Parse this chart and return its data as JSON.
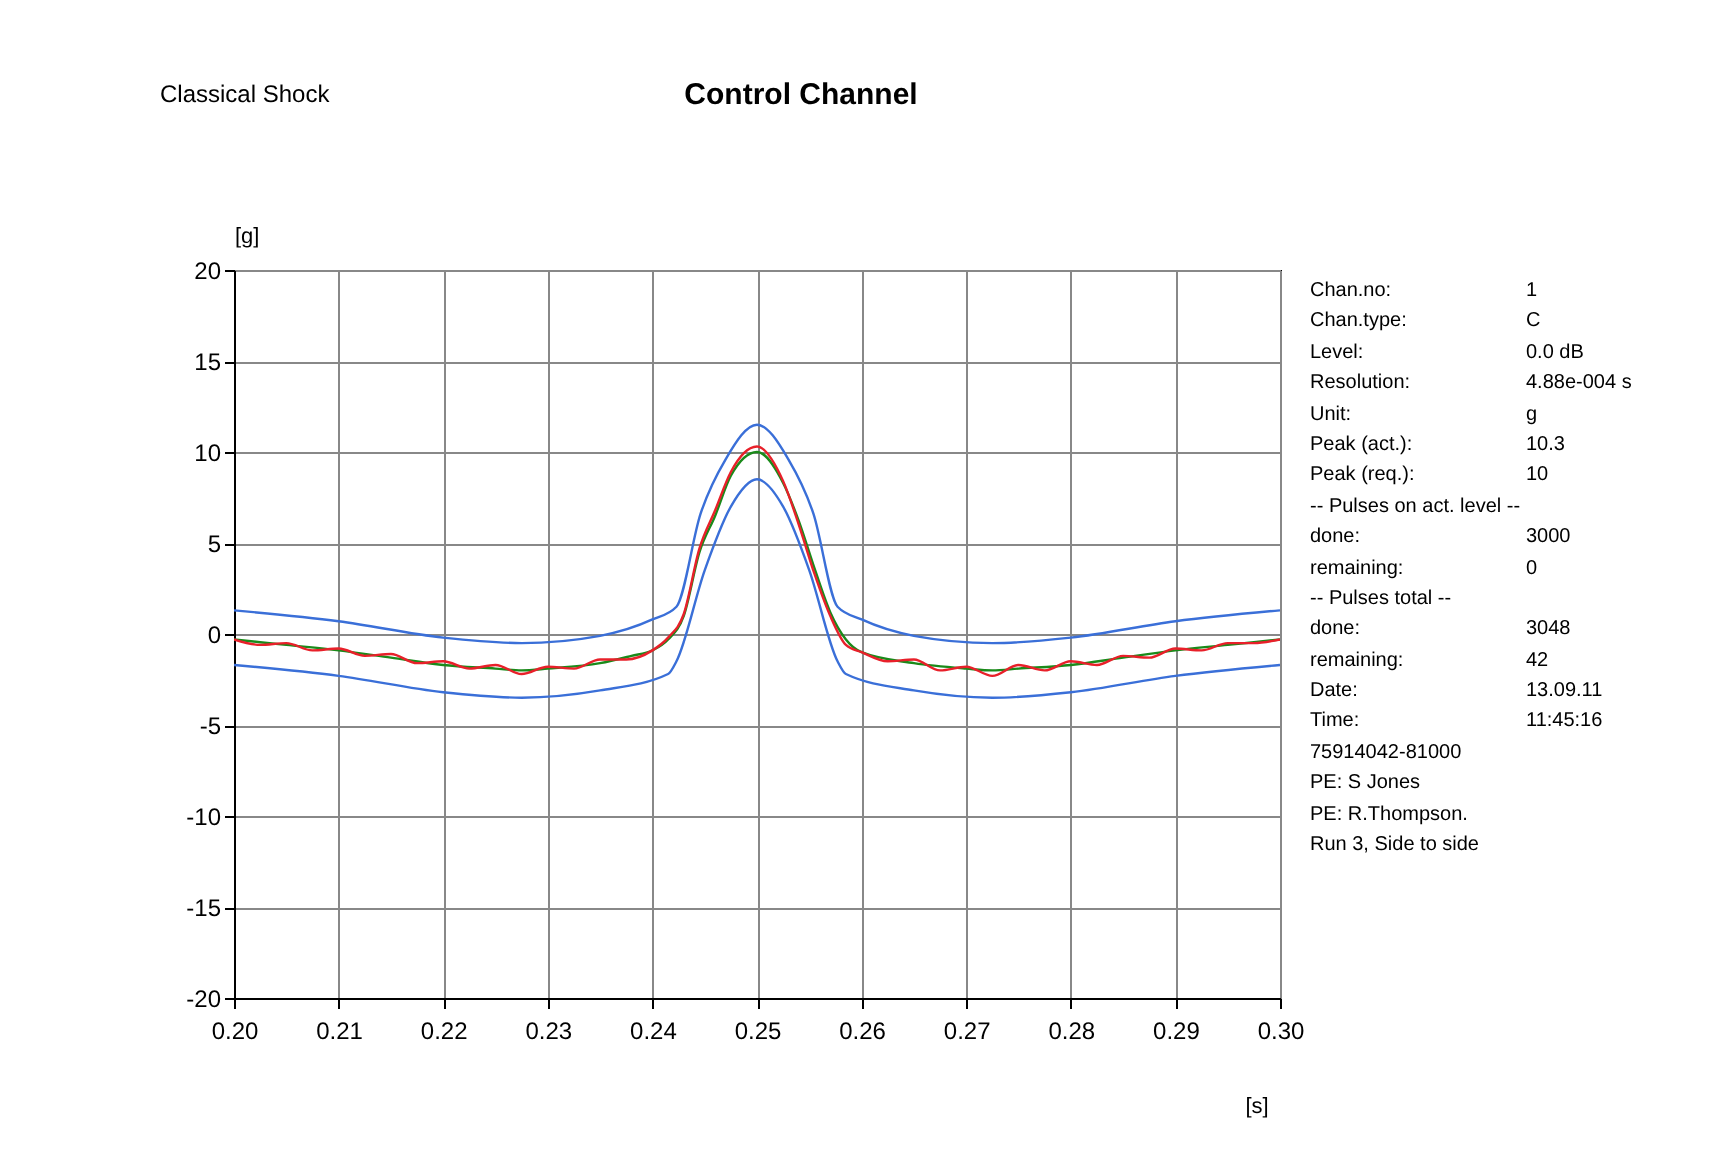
{
  "chart_data": {
    "type": "line",
    "title": "Control Channel",
    "xlabel": "[s]",
    "ylabel": "[g]",
    "xlim": [
      0.2,
      0.3
    ],
    "ylim": [
      -20,
      20
    ],
    "xticks": [
      {
        "value": 0.2,
        "label": "0.20"
      },
      0.21,
      0.22,
      0.23,
      0.24,
      0.25,
      0.26,
      0.27,
      0.28,
      0.29,
      {
        "value": 0.3,
        "label": "0.30"
      }
    ],
    "yticks": [
      -20,
      -15,
      -10,
      -5,
      0,
      5,
      10,
      15,
      20
    ],
    "grid": true,
    "legend": false,
    "marker": "none",
    "line_style": "solid",
    "series": [
      {
        "color": "#3a6fd8",
        "x": [
          0.2,
          0.21,
          0.22,
          0.2275,
          0.235,
          0.24,
          0.2423,
          0.2446,
          0.247,
          0.25,
          0.253,
          0.2554,
          0.2577,
          0.26,
          0.265,
          0.2725,
          0.28,
          0.29,
          0.3
        ],
        "values": [
          1.3,
          0.7,
          -0.2,
          -0.5,
          -0.1,
          0.8,
          1.5,
          6.6,
          9.6,
          11.5,
          9.6,
          6.6,
          1.5,
          0.8,
          -0.1,
          -0.5,
          -0.2,
          0.7,
          1.3
        ]
      },
      {
        "color": "#3a6fd8",
        "x": [
          0.2,
          0.21,
          0.22,
          0.2275,
          0.235,
          0.2415,
          0.2423,
          0.245,
          0.2475,
          0.25,
          0.2525,
          0.255,
          0.2577,
          0.2585,
          0.265,
          0.2725,
          0.28,
          0.29,
          0.3
        ],
        "values": [
          -1.7,
          -2.3,
          -3.2,
          -3.5,
          -3.1,
          -2.2,
          -1.5,
          3.5,
          7.0,
          8.5,
          7.0,
          3.5,
          -1.5,
          -2.2,
          -3.1,
          -3.5,
          -3.2,
          -2.3,
          -1.7
        ]
      },
      {
        "color": "#1a8a1a",
        "x": [
          0.2,
          0.205,
          0.21,
          0.215,
          0.22,
          0.225,
          0.2275,
          0.23,
          0.235,
          0.238,
          0.24,
          0.2415,
          0.243,
          0.2445,
          0.246,
          0.2475,
          0.25,
          0.2525,
          0.254,
          0.2555,
          0.257,
          0.2585,
          0.26,
          0.265,
          0.27,
          0.2725,
          0.275,
          0.28,
          0.285,
          0.29,
          0.295,
          0.3
        ],
        "values": [
          -0.3,
          -0.6,
          -0.9,
          -1.3,
          -1.7,
          -1.9,
          -2.0,
          -1.9,
          -1.6,
          -1.2,
          -0.9,
          -0.3,
          1.0,
          4.5,
          6.5,
          8.7,
          10,
          8.3,
          6.2,
          3.6,
          1.2,
          -0.3,
          -1.0,
          -1.6,
          -1.9,
          -2.0,
          -1.9,
          -1.7,
          -1.3,
          -0.9,
          -0.6,
          -0.3
        ]
      },
      {
        "color": "#e8202a",
        "x": [
          0.2,
          0.2025,
          0.205,
          0.2075,
          0.21,
          0.2125,
          0.215,
          0.2175,
          0.22,
          0.2225,
          0.225,
          0.2275,
          0.23,
          0.2325,
          0.235,
          0.2375,
          0.24,
          0.2415,
          0.243,
          0.2445,
          0.246,
          0.2475,
          0.25,
          0.2525,
          0.254,
          0.2555,
          0.257,
          0.2585,
          0.26,
          0.2625,
          0.265,
          0.2675,
          0.27,
          0.2725,
          0.275,
          0.2775,
          0.28,
          0.2825,
          0.285,
          0.2875,
          0.29,
          0.2925,
          0.295,
          0.2975,
          0.3
        ],
        "values": [
          -0.3,
          -0.6,
          -0.5,
          -0.9,
          -0.8,
          -1.2,
          -1.1,
          -1.6,
          -1.5,
          -1.9,
          -1.7,
          -2.2,
          -1.8,
          -1.9,
          -1.4,
          -1.4,
          -0.9,
          -0.2,
          1.1,
          4.7,
          6.8,
          8.9,
          10.3,
          8.4,
          6.0,
          3.3,
          1.0,
          -0.6,
          -1.0,
          -1.5,
          -1.4,
          -2.0,
          -1.8,
          -2.3,
          -1.7,
          -2.0,
          -1.5,
          -1.7,
          -1.2,
          -1.3,
          -0.8,
          -0.9,
          -0.5,
          -0.5,
          -0.3
        ]
      }
    ],
    "annotations": [
      "Classical Shock",
      "Chan.no:\t1",
      "Chan.type:\tC",
      "Level:\t0.0 dB",
      "Resolution:\t4.88e-004 s",
      "Unit:\tg",
      "Peak (act.):\t10.3",
      "Peak (req.):\t10",
      "-- Pulses on act. level --",
      "done:\t3000",
      "remaining:\t0",
      "-- Pulses total --",
      "done:\t3048",
      "remaining:\t42",
      "Date:\t13.09.11",
      "Time:\t11:45:16",
      "75914042-81000",
      "PE: S Jones",
      "PE: R.Thompson.",
      "Run 3, Side to side"
    ]
  }
}
